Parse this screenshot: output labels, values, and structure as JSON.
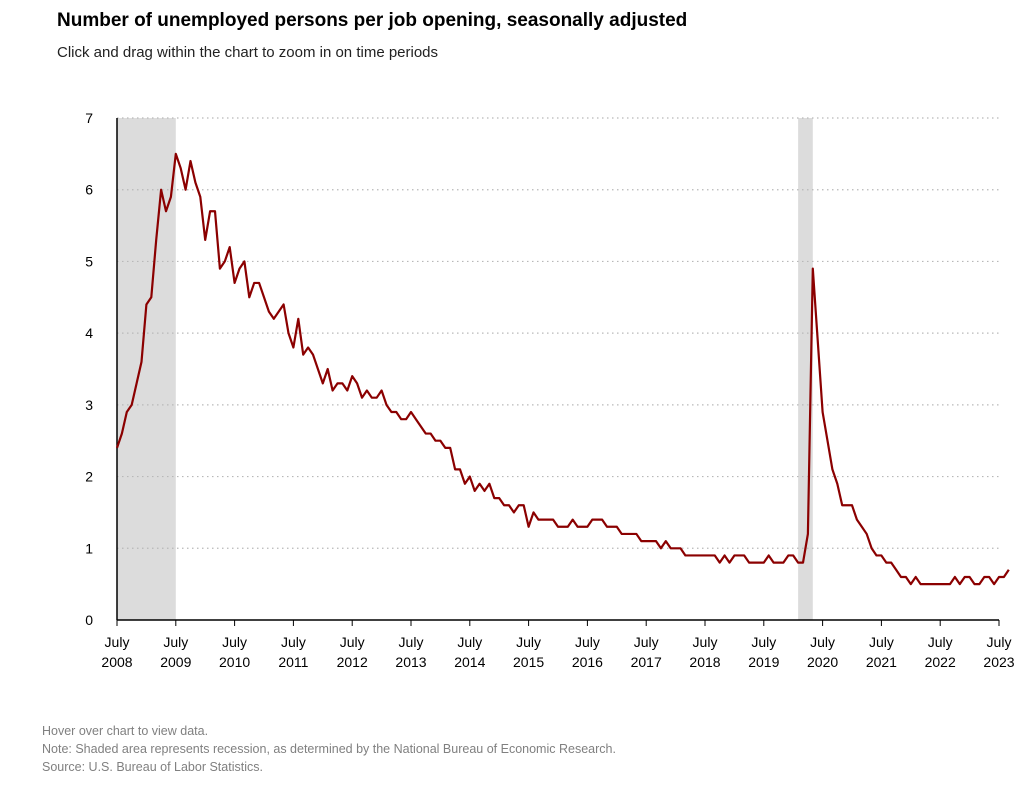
{
  "title": "Number of unemployed persons per job opening, seasonally adjusted",
  "subtitle": "Click and drag within the chart to zoom in on time periods",
  "notes": {
    "hover": "Hover over chart to view data.",
    "note": "Note: Shaded area represents recession, as determined by the National Bureau of Economic Research.",
    "source": "Source: U.S. Bureau of Labor Statistics."
  },
  "colors": {
    "line": "#8b0000",
    "recession": "#dcdcdc",
    "grid": "#b8b8b8",
    "axis": "#000000"
  },
  "chart_data": {
    "type": "line",
    "ylim": [
      0,
      7
    ],
    "yticks": [
      0,
      1,
      2,
      3,
      4,
      5,
      6,
      7
    ],
    "grid": "horizontal dotted",
    "xlim": [
      "2008-07",
      "2023-07"
    ],
    "xticks": [
      {
        "x": "2008-07",
        "label": [
          "July",
          "2008"
        ]
      },
      {
        "x": "2009-07",
        "label": [
          "July",
          "2009"
        ]
      },
      {
        "x": "2010-07",
        "label": [
          "July",
          "2010"
        ]
      },
      {
        "x": "2011-07",
        "label": [
          "July",
          "2011"
        ]
      },
      {
        "x": "2012-07",
        "label": [
          "July",
          "2012"
        ]
      },
      {
        "x": "2013-07",
        "label": [
          "July",
          "2013"
        ]
      },
      {
        "x": "2014-07",
        "label": [
          "July",
          "2014"
        ]
      },
      {
        "x": "2015-07",
        "label": [
          "July",
          "2015"
        ]
      },
      {
        "x": "2016-07",
        "label": [
          "July",
          "2016"
        ]
      },
      {
        "x": "2017-07",
        "label": [
          "July",
          "2017"
        ]
      },
      {
        "x": "2018-07",
        "label": [
          "July",
          "2018"
        ]
      },
      {
        "x": "2019-07",
        "label": [
          "July",
          "2019"
        ]
      },
      {
        "x": "2020-07",
        "label": [
          "July",
          "2020"
        ]
      },
      {
        "x": "2021-07",
        "label": [
          "July",
          "2021"
        ]
      },
      {
        "x": "2022-07",
        "label": [
          "July",
          "2022"
        ]
      },
      {
        "x": "2023-07",
        "label": [
          "July",
          "2023"
        ]
      }
    ],
    "recessions": [
      {
        "start": "2008-07",
        "end": "2009-06"
      },
      {
        "start": "2020-02",
        "end": "2020-04"
      }
    ],
    "series": [
      {
        "x_start": "2008-07",
        "frequency": "monthly",
        "values": [
          2.4,
          2.6,
          2.9,
          3.0,
          3.3,
          3.6,
          4.4,
          4.5,
          5.3,
          6.0,
          5.7,
          5.9,
          6.5,
          6.3,
          6.0,
          6.4,
          6.1,
          5.9,
          5.3,
          5.7,
          5.7,
          4.9,
          5.0,
          5.2,
          4.7,
          4.9,
          5.0,
          4.5,
          4.7,
          4.7,
          4.5,
          4.3,
          4.2,
          4.3,
          4.4,
          4.0,
          3.8,
          4.2,
          3.7,
          3.8,
          3.7,
          3.5,
          3.3,
          3.5,
          3.2,
          3.3,
          3.3,
          3.2,
          3.4,
          3.3,
          3.1,
          3.2,
          3.1,
          3.1,
          3.2,
          3.0,
          2.9,
          2.9,
          2.8,
          2.8,
          2.9,
          2.8,
          2.7,
          2.6,
          2.6,
          2.5,
          2.5,
          2.4,
          2.4,
          2.1,
          2.1,
          1.9,
          2.0,
          1.8,
          1.9,
          1.8,
          1.9,
          1.7,
          1.7,
          1.6,
          1.6,
          1.5,
          1.6,
          1.6,
          1.3,
          1.5,
          1.4,
          1.4,
          1.4,
          1.4,
          1.3,
          1.3,
          1.3,
          1.4,
          1.3,
          1.3,
          1.3,
          1.4,
          1.4,
          1.4,
          1.3,
          1.3,
          1.3,
          1.2,
          1.2,
          1.2,
          1.2,
          1.1,
          1.1,
          1.1,
          1.1,
          1.0,
          1.1,
          1.0,
          1.0,
          1.0,
          0.9,
          0.9,
          0.9,
          0.9,
          0.9,
          0.9,
          0.9,
          0.8,
          0.9,
          0.8,
          0.9,
          0.9,
          0.9,
          0.8,
          0.8,
          0.8,
          0.8,
          0.9,
          0.8,
          0.8,
          0.8,
          0.9,
          0.9,
          0.8,
          0.8,
          1.2,
          4.9,
          3.9,
          2.9,
          2.5,
          2.1,
          1.9,
          1.6,
          1.6,
          1.6,
          1.4,
          1.3,
          1.2,
          1.0,
          0.9,
          0.9,
          0.8,
          0.8,
          0.7,
          0.6,
          0.6,
          0.5,
          0.6,
          0.5,
          0.5,
          0.5,
          0.5,
          0.5,
          0.5,
          0.5,
          0.6,
          0.5,
          0.6,
          0.6,
          0.5,
          0.5,
          0.6,
          0.6,
          0.5,
          0.6,
          0.6,
          0.7
        ]
      }
    ]
  }
}
